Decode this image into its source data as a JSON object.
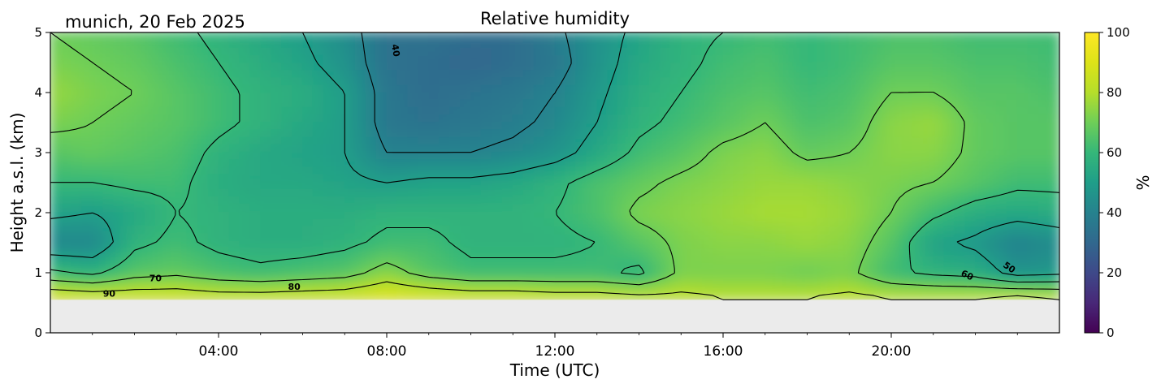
{
  "chart_data": {
    "type": "heatmap",
    "title": "Relative humidity",
    "subtitle": "munich, 20 Feb 2025",
    "xlabel": "Time (UTC)",
    "ylabel": "Height a.s.l. (km)",
    "xlim": [
      0,
      24
    ],
    "ylim": [
      0,
      5
    ],
    "x_ticks": [
      4,
      8,
      12,
      16,
      20
    ],
    "x_tick_labels": [
      "04:00",
      "08:00",
      "12:00",
      "16:00",
      "20:00"
    ],
    "y_ticks": [
      0,
      1,
      2,
      3,
      4,
      5
    ],
    "y_tick_labels": [
      "0",
      "1",
      "2",
      "3",
      "4",
      "5"
    ],
    "colorbar": {
      "label": "%",
      "colormap": "viridis",
      "range": [
        0,
        100
      ],
      "ticks": [
        0,
        20,
        40,
        60,
        80,
        100
      ],
      "tick_labels": [
        "0",
        "20",
        "40",
        "60",
        "80",
        "100"
      ]
    },
    "data_bottom_km": 0.55,
    "no_data_color": "#ebebeb",
    "contour_levels": [
      40,
      50,
      60,
      70,
      80,
      90
    ],
    "contour_labels": [
      {
        "text": "40",
        "x": 8.2,
        "y": 4.7,
        "rotation": 80
      },
      {
        "text": "50",
        "x": 22.8,
        "y": 1.08,
        "rotation": 35
      },
      {
        "text": "60",
        "x": 21.8,
        "y": 0.95,
        "rotation": 25
      },
      {
        "text": "70",
        "x": 2.5,
        "y": 0.9,
        "rotation": 0
      },
      {
        "text": "80",
        "x": 5.8,
        "y": 0.76,
        "rotation": 0
      },
      {
        "text": "90",
        "x": 1.4,
        "y": 0.64,
        "rotation": 0
      }
    ],
    "time_grid": [
      0,
      1,
      2,
      3,
      4,
      5,
      6,
      7,
      8,
      9,
      10,
      11,
      12,
      13,
      14,
      15,
      16,
      17,
      18,
      19,
      20,
      21,
      22,
      23,
      24
    ],
    "height_grid": [
      0.6,
      1.0,
      1.5,
      2.0,
      2.5,
      3.0,
      3.5,
      4.0,
      4.5,
      5.0
    ],
    "rh_values": [
      [
        88,
        86,
        86,
        86,
        84,
        84,
        85,
        86,
        90,
        88,
        86,
        86,
        84,
        84,
        82,
        82,
        80,
        80,
        80,
        82,
        80,
        80,
        80,
        82,
        80
      ],
      [
        62,
        58,
        66,
        68,
        64,
        62,
        64,
        66,
        74,
        66,
        62,
        62,
        62,
        62,
        58,
        72,
        72,
        72,
        70,
        72,
        62,
        58,
        56,
        46,
        48
      ],
      [
        42,
        42,
        58,
        62,
        58,
        56,
        56,
        58,
        62,
        62,
        58,
        58,
        58,
        60,
        66,
        72,
        74,
        74,
        76,
        74,
        66,
        52,
        48,
        40,
        44
      ],
      [
        52,
        50,
        54,
        60,
        58,
        56,
        56,
        56,
        58,
        58,
        58,
        58,
        60,
        64,
        72,
        74,
        76,
        78,
        78,
        76,
        70,
        62,
        56,
        54,
        56
      ],
      [
        60,
        60,
        62,
        62,
        56,
        54,
        54,
        52,
        50,
        52,
        52,
        54,
        58,
        64,
        68,
        72,
        74,
        76,
        76,
        74,
        72,
        70,
        66,
        62,
        62
      ],
      [
        66,
        68,
        66,
        64,
        58,
        54,
        52,
        50,
        40,
        40,
        40,
        42,
        46,
        54,
        62,
        66,
        72,
        74,
        68,
        70,
        74,
        74,
        68,
        66,
        66
      ],
      [
        72,
        70,
        68,
        66,
        62,
        58,
        54,
        50,
        36,
        34,
        36,
        38,
        42,
        50,
        58,
        62,
        66,
        70,
        64,
        66,
        74,
        76,
        68,
        66,
        66
      ],
      [
        76,
        72,
        70,
        66,
        62,
        58,
        56,
        50,
        36,
        32,
        34,
        36,
        40,
        48,
        56,
        60,
        64,
        66,
        62,
        64,
        70,
        70,
        66,
        66,
        64
      ],
      [
        72,
        70,
        68,
        64,
        60,
        56,
        52,
        46,
        34,
        32,
        30,
        32,
        36,
        46,
        54,
        58,
        62,
        64,
        60,
        62,
        66,
        66,
        64,
        64,
        62
      ],
      [
        70,
        68,
        66,
        62,
        58,
        54,
        50,
        44,
        34,
        34,
        32,
        32,
        38,
        46,
        52,
        58,
        60,
        62,
        60,
        62,
        64,
        64,
        62,
        62,
        62
      ]
    ]
  }
}
